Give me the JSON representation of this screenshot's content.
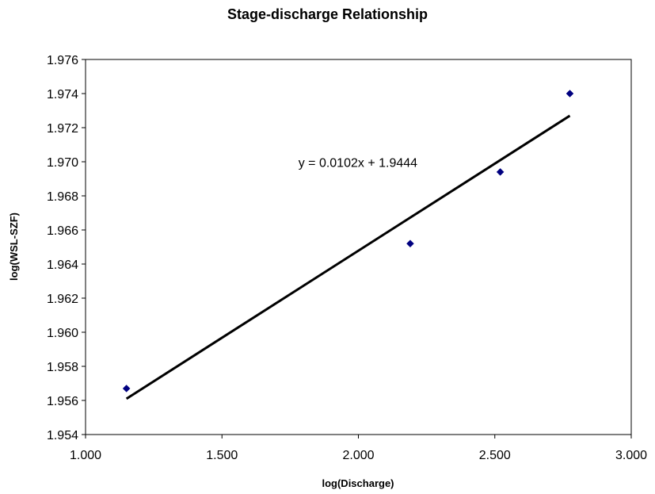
{
  "chart_data": {
    "type": "scatter",
    "title": "Stage-discharge Relationship",
    "xlabel": "log(Discharge)",
    "ylabel": "log(WSL-SZF)",
    "xlim": [
      1.0,
      3.0
    ],
    "ylim": [
      1.954,
      1.976
    ],
    "xticks": [
      "1.000",
      "1.500",
      "2.000",
      "2.500",
      "3.000"
    ],
    "yticks": [
      "1.954",
      "1.956",
      "1.958",
      "1.960",
      "1.962",
      "1.964",
      "1.966",
      "1.968",
      "1.970",
      "1.972",
      "1.974",
      "1.976"
    ],
    "grid": false,
    "series": [
      {
        "type": "scatter",
        "color": "#000080",
        "marker": "diamond",
        "points": [
          {
            "x": 1.15,
            "y": 1.9567
          },
          {
            "x": 2.19,
            "y": 1.9652
          },
          {
            "x": 2.52,
            "y": 1.9694
          },
          {
            "x": 2.775,
            "y": 1.974
          }
        ]
      },
      {
        "type": "line",
        "color": "#000000",
        "points": [
          {
            "x": 1.15,
            "y": 1.9561
          },
          {
            "x": 2.775,
            "y": 1.9727
          }
        ]
      }
    ],
    "annotations": [
      {
        "text": "y = 0.0102x + 1.9444",
        "x": 1.78,
        "y": 1.9697
      }
    ]
  }
}
